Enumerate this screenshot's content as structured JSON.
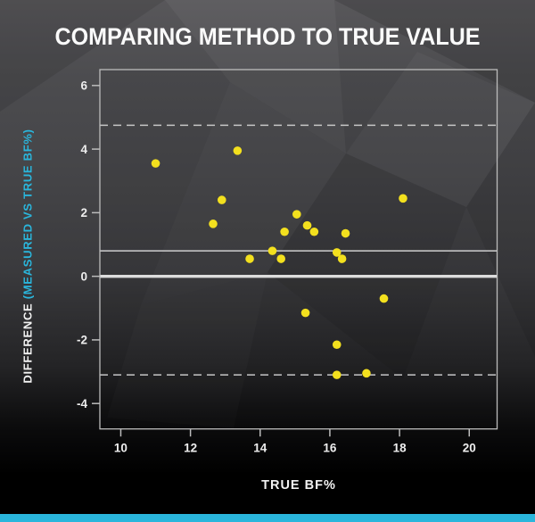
{
  "title": "COMPARING METHOD TO TRUE VALUE",
  "colors": {
    "accent_cyan": "#2ab6dc",
    "point_yellow": "#f3e01e",
    "axis_gray": "#bcbcbc",
    "zero_line": "#dcdcdc",
    "background_top": "#58575a",
    "background_bottom": "#000000"
  },
  "chart_data": {
    "type": "scatter",
    "title": "COMPARING METHOD TO TRUE VALUE",
    "xlabel": "TRUE BF%",
    "ylabel": "DIFFERENCE (MEASURED VS TRUE BF%)",
    "ylabel_primary": "DIFFERENCE ",
    "ylabel_secondary": "(MEASURED VS TRUE BF%)",
    "xlim": [
      9.4,
      20.8
    ],
    "ylim": [
      -4.8,
      6.5
    ],
    "x_ticks": [
      10,
      12,
      14,
      16,
      18,
      20
    ],
    "y_ticks": [
      6,
      4,
      2,
      0,
      -2,
      -4
    ],
    "grid": false,
    "legend": "none",
    "points": [
      [
        11.0,
        3.55
      ],
      [
        13.35,
        3.95
      ],
      [
        12.9,
        2.4
      ],
      [
        12.65,
        1.65
      ],
      [
        15.05,
        1.95
      ],
      [
        14.7,
        1.4
      ],
      [
        15.35,
        1.6
      ],
      [
        15.55,
        1.4
      ],
      [
        16.45,
        1.35
      ],
      [
        18.1,
        2.45
      ],
      [
        14.35,
        0.8
      ],
      [
        13.7,
        0.55
      ],
      [
        14.6,
        0.55
      ],
      [
        16.2,
        0.75
      ],
      [
        16.35,
        0.55
      ],
      [
        15.3,
        -1.15
      ],
      [
        17.55,
        -0.7
      ],
      [
        16.2,
        -2.15
      ],
      [
        16.2,
        -3.1
      ],
      [
        17.05,
        -3.05
      ]
    ],
    "reference_lines": {
      "zero": 0,
      "mean_bias": 0.8,
      "upper_limit": 4.75,
      "lower_limit": -3.1
    }
  }
}
